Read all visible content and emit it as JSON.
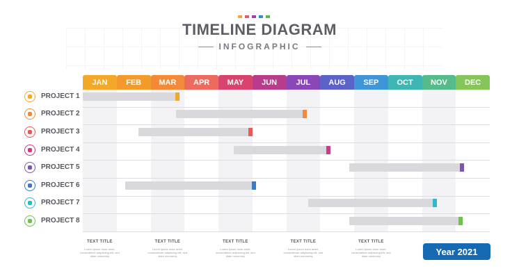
{
  "header": {
    "title": "TIMELINE DIAGRAM",
    "subtitle": "INFOGRAPHIC",
    "dot_colors": [
      "#f2a33a",
      "#e9547b",
      "#9a3fb5",
      "#3b88d6",
      "#58b953"
    ]
  },
  "months": [
    {
      "label": "JAN",
      "color": "#f4a82a"
    },
    {
      "label": "FEB",
      "color": "#f39a2d"
    },
    {
      "label": "MAR",
      "color": "#f28a3a"
    },
    {
      "label": "APR",
      "color": "#ec6a5e"
    },
    {
      "label": "MAY",
      "color": "#d9436f"
    },
    {
      "label": "JUN",
      "color": "#b83c8c"
    },
    {
      "label": "JUL",
      "color": "#8a47b8"
    },
    {
      "label": "AUG",
      "color": "#5b63c9"
    },
    {
      "label": "SEP",
      "color": "#3e95d8"
    },
    {
      "label": "OCT",
      "color": "#3fb6b4"
    },
    {
      "label": "NOV",
      "color": "#56bb8a"
    },
    {
      "label": "DEC",
      "color": "#85c55a"
    }
  ],
  "projects": [
    {
      "label": "PROJECT 1",
      "start": 0.0,
      "end": 2.85,
      "color": "#f4a82a",
      "icon": "lightbulb-icon"
    },
    {
      "label": "PROJECT 2",
      "start": 2.75,
      "end": 6.6,
      "color": "#f28a3a",
      "icon": "laptop-icon"
    },
    {
      "label": "PROJECT 3",
      "start": 1.65,
      "end": 5.0,
      "color": "#ec5a52",
      "icon": "chat-icon"
    },
    {
      "label": "PROJECT 4",
      "start": 4.45,
      "end": 7.3,
      "color": "#c83a8a",
      "icon": "folder-icon"
    },
    {
      "label": "PROJECT 5",
      "start": 7.85,
      "end": 11.25,
      "color": "#7e55b3",
      "icon": "pie-chart-icon"
    },
    {
      "label": "PROJECT 6",
      "start": 1.25,
      "end": 5.1,
      "color": "#3a7ac6",
      "icon": "bar-chart-icon"
    },
    {
      "label": "PROJECT 7",
      "start": 6.65,
      "end": 10.45,
      "color": "#2db8d0",
      "icon": "line-chart-icon"
    },
    {
      "label": "PROJECT 8",
      "start": 7.85,
      "end": 11.2,
      "color": "#6fc24c",
      "icon": "leaf-icon"
    }
  ],
  "text_blocks": [
    {
      "title": "TEXT TITLE",
      "body": "Lorem ipsum dolor amet, consectetuer adipiscing elit, sed diam nonummy"
    },
    {
      "title": "TEXT TITLE",
      "body": "Lorem ipsum dolor amet, consectetuer adipiscing elit, sed diam nonummy"
    },
    {
      "title": "TEXT TITLE",
      "body": "Lorem ipsum dolor amet, consectetuer adipiscing elit, sed diam nonummy"
    },
    {
      "title": "TEXT TITLE",
      "body": "Lorem ipsum dolor amet, consectetuer adipiscing elit, sed diam nonummy"
    },
    {
      "title": "TEXT TITLE",
      "body": "Lorem ipsum dolor amet, consectetuer adipiscing elit, sed diam nonummy"
    }
  ],
  "year_label": "Year 2021"
}
